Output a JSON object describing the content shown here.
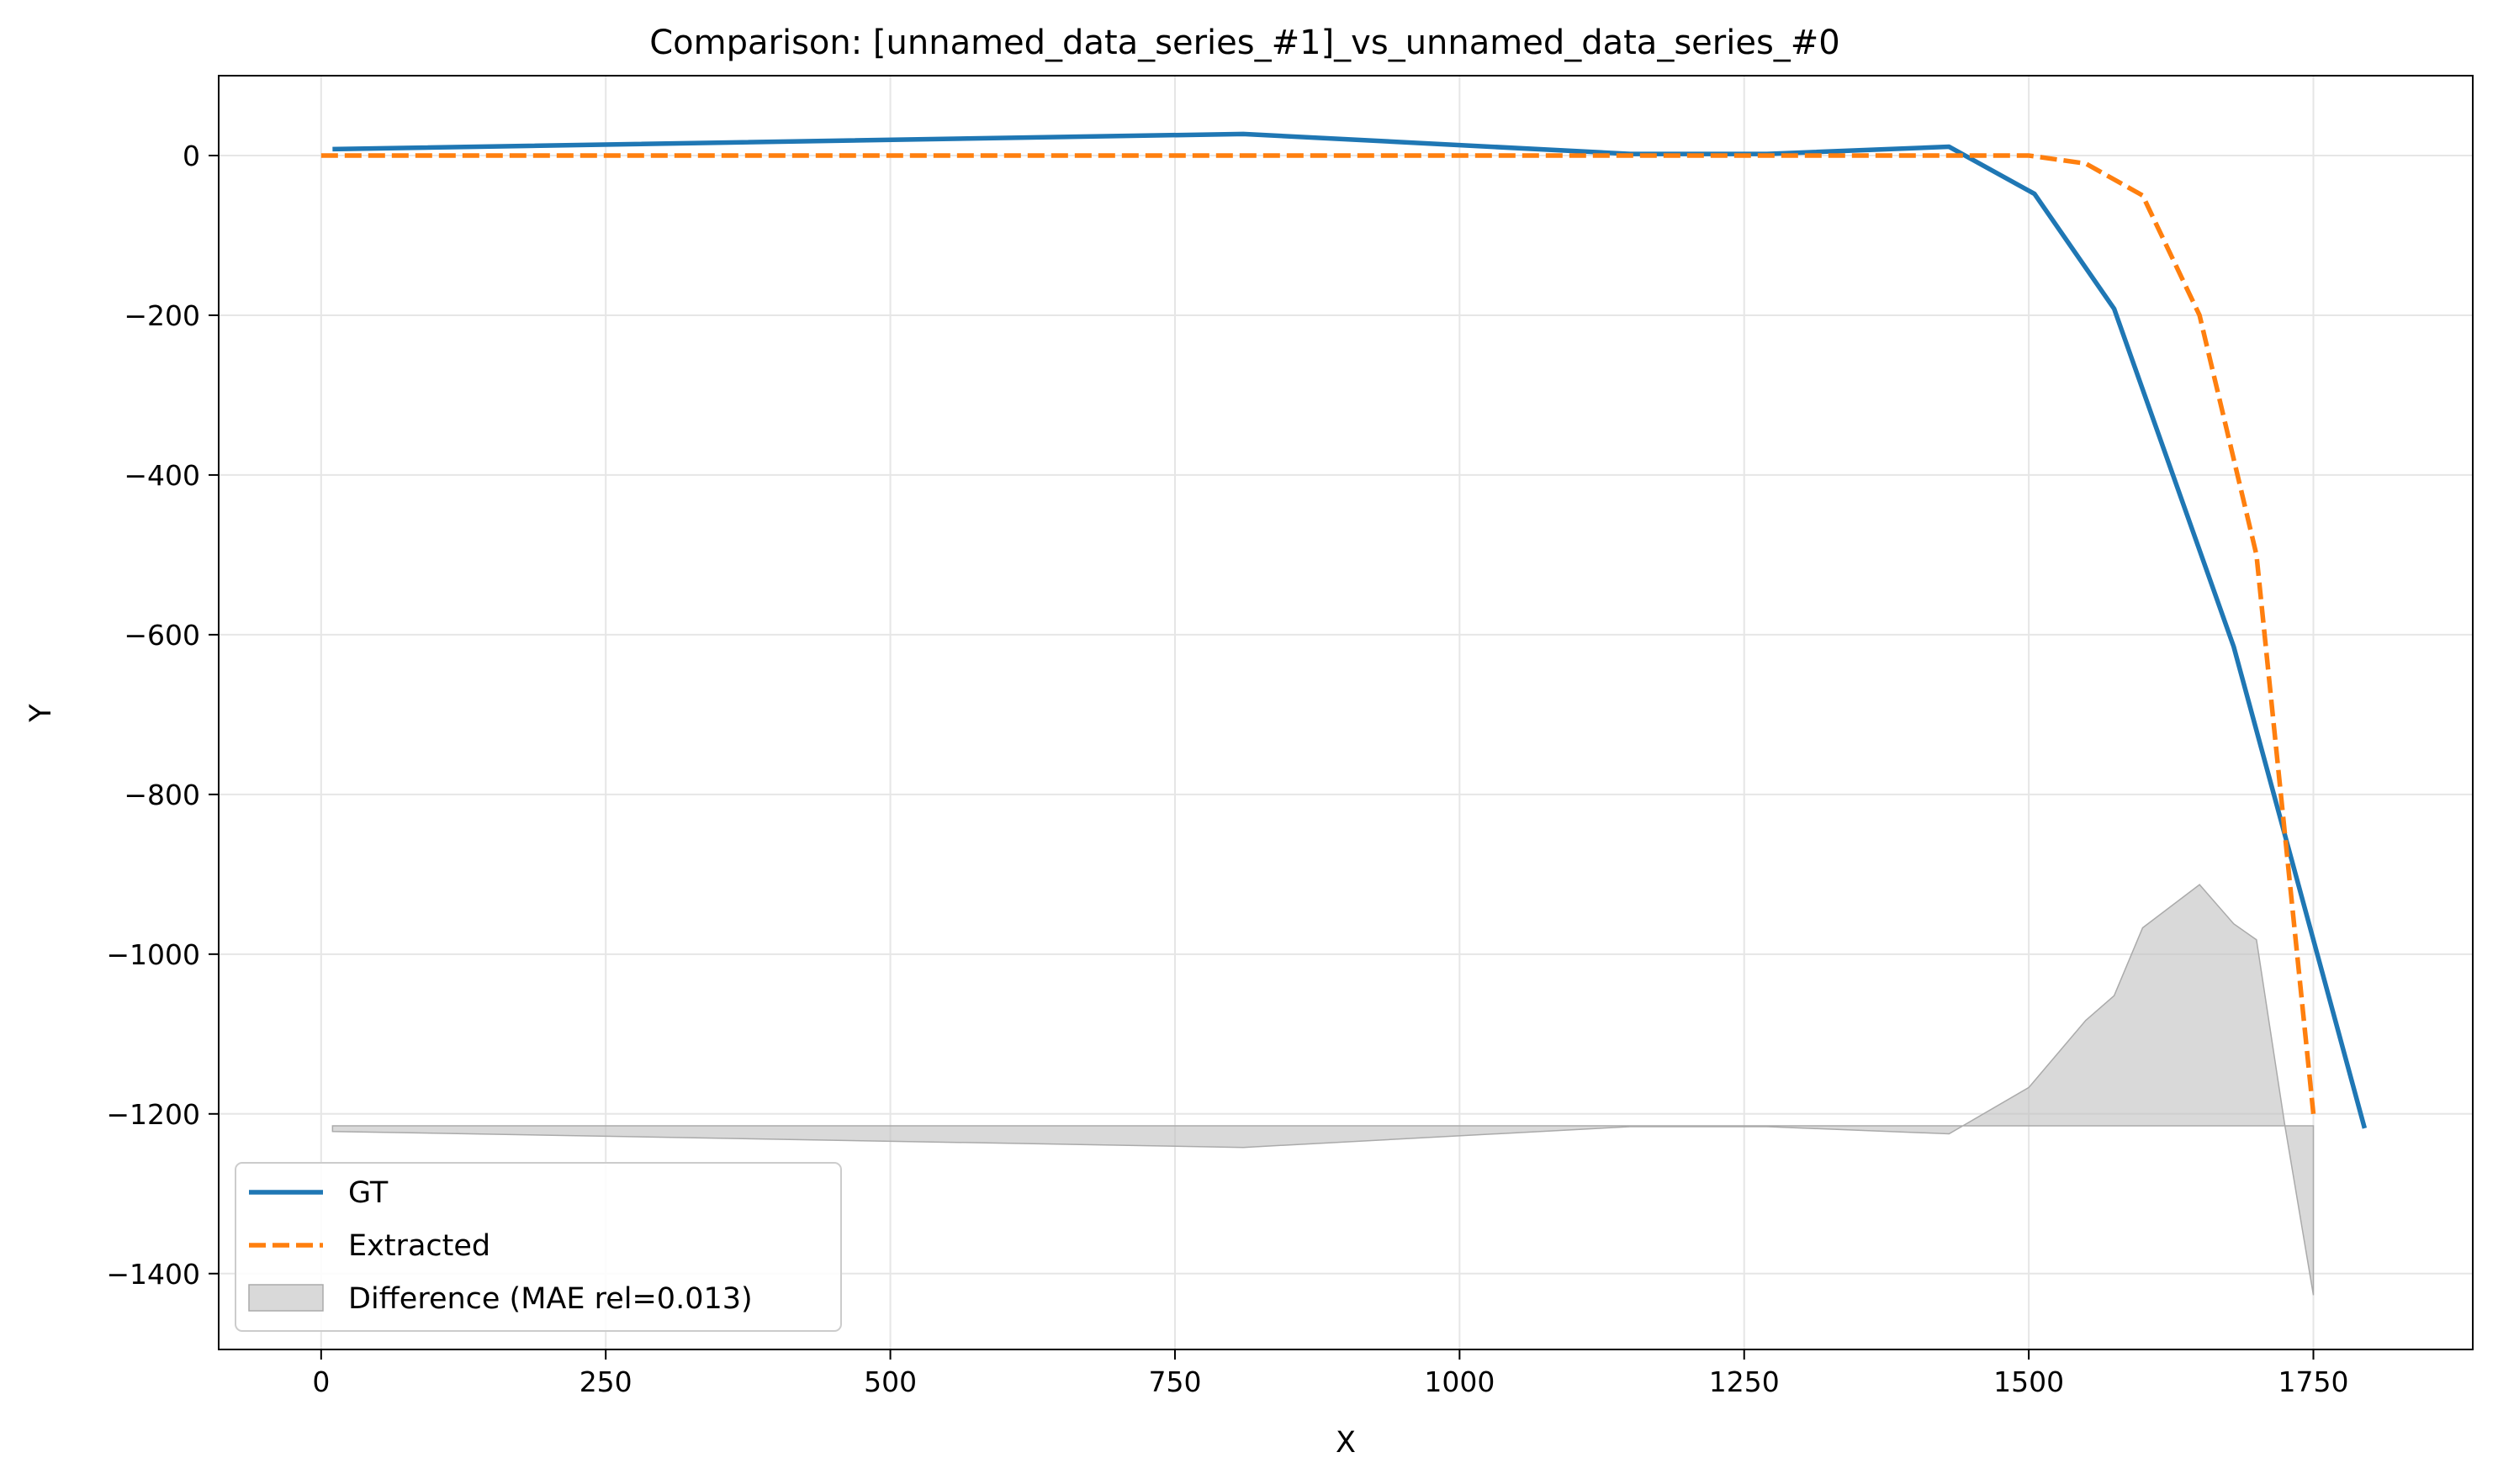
{
  "chart_data": {
    "type": "line",
    "title": "Comparison: [unnamed_data_series_#1]_vs_unnamed_data_series_#0",
    "xlabel": "X",
    "ylabel": "Y",
    "xlim": [
      -90,
      1890
    ],
    "ylim": [
      -1495,
      100
    ],
    "xticks": [
      0,
      250,
      500,
      750,
      1000,
      1250,
      1500,
      1750
    ],
    "xtick_labels": [
      "0",
      "250",
      "500",
      "750",
      "1000",
      "1250",
      "1500",
      "1750"
    ],
    "yticks": [
      0,
      -200,
      -400,
      -600,
      -800,
      -1000,
      -1200,
      -1400
    ],
    "ytick_labels": [
      "0",
      "−200",
      "−400",
      "−600",
      "−800",
      "−1000",
      "−1200",
      "−1400"
    ],
    "grid": true,
    "legend_position": "lower-left",
    "series": [
      {
        "name": "GT",
        "style": "solid",
        "color": "#1f77b4",
        "x": [
          10,
          810,
          1150,
          1270,
          1430,
          1505,
          1575,
          1680,
          1795
        ],
        "y": [
          8,
          27,
          2,
          2,
          11,
          -48,
          -192,
          -615,
          -1218
        ]
      },
      {
        "name": "Extracted",
        "style": "dashed",
        "color": "#ff7f0e",
        "x": [
          0,
          1450,
          1500,
          1550,
          1600,
          1650,
          1700,
          1750
        ],
        "y": [
          0,
          0,
          0,
          -10,
          -50,
          -200,
          -500,
          -1200
        ]
      }
    ],
    "difference": {
      "name": "Difference (MAE rel=0.013)",
      "color": "#c0c0c0",
      "baseline": -1215,
      "x": [
        10,
        810,
        1150,
        1270,
        1430,
        1500,
        1550,
        1575,
        1600,
        1650,
        1680,
        1700,
        1725,
        1750,
        1750
      ],
      "y": [
        -1222,
        -1242,
        -1216,
        -1216,
        -1225,
        -1167,
        -1083,
        -1052,
        -967,
        -913,
        -962,
        -982,
        -1215,
        -1427,
        -1215
      ]
    }
  }
}
